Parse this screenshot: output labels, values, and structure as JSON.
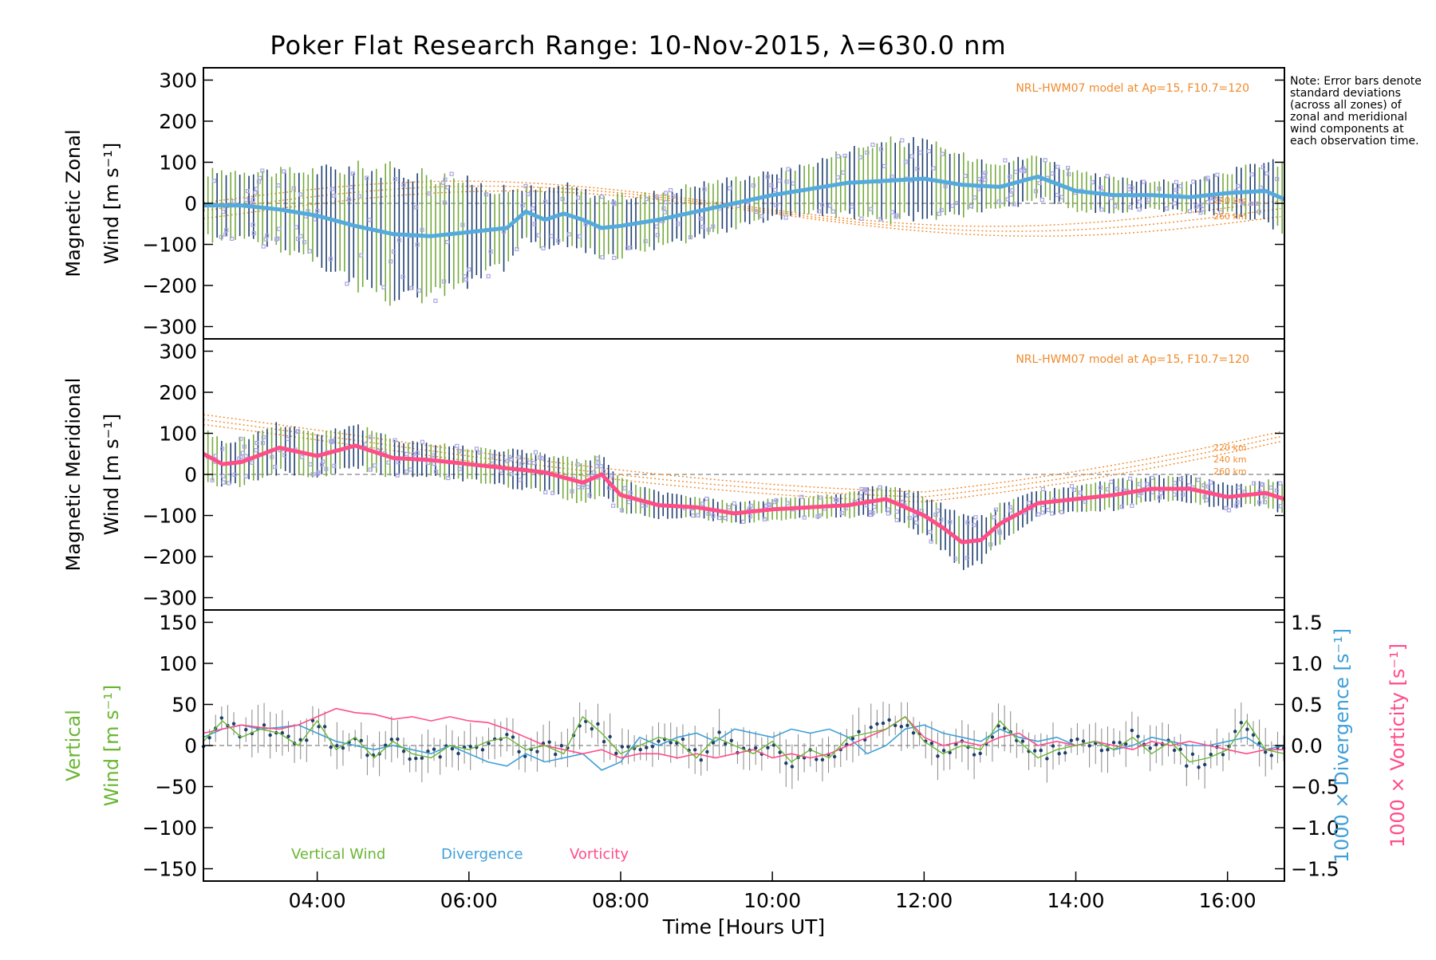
{
  "title": "Poker Flat Research Range: 10-Nov-2015, λ=630.0 nm",
  "note": "Note: Error bars denote standard deviations (across all zones) of zonal and meridional wind components at each observation time.",
  "colors": {
    "zonal": "#55aadd",
    "meridional": "#ff4d88",
    "vertical": "#6ab633",
    "divergence": "#3f9fd8",
    "vorticity": "#ff4d88",
    "model": "#f08a2c",
    "scatter": "#a9a6e4",
    "errorbar_dark": "#1e3e6e",
    "errorbar_green": "#74aa3c"
  },
  "chart_data": [
    {
      "type": "line",
      "ylabel": "Magnetic Zonal Wind [m s⁻¹]",
      "ylabel_line1": "Magnetic Zonal",
      "ylabel_line2": "Wind [m s⁻¹]",
      "model_label": "NRL-HWM07 model at Ap=15, F10.7=120",
      "altitude_labels": [
        "240 km",
        "260 km"
      ],
      "xlim": [
        2.5,
        16.75
      ],
      "ylim": [
        -330,
        330
      ],
      "yticks": [
        300,
        200,
        100,
        0,
        -100,
        -200,
        -300
      ],
      "x": [
        2.5,
        3.0,
        3.5,
        4.0,
        4.5,
        5.0,
        5.5,
        6.0,
        6.5,
        6.75,
        7.0,
        7.25,
        7.5,
        7.75,
        8.0,
        8.5,
        9.0,
        9.5,
        10.0,
        10.5,
        11.0,
        11.5,
        12.0,
        12.5,
        13.0,
        13.5,
        14.0,
        14.5,
        15.0,
        15.5,
        16.0,
        16.5,
        16.75
      ],
      "mean_wind": [
        -5,
        -5,
        -15,
        -30,
        -55,
        -75,
        -80,
        -70,
        -60,
        -20,
        -40,
        -25,
        -40,
        -60,
        -55,
        -40,
        -20,
        0,
        20,
        35,
        50,
        55,
        60,
        45,
        40,
        65,
        30,
        20,
        20,
        15,
        25,
        30,
        10
      ],
      "std_dev": [
        80,
        85,
        90,
        110,
        140,
        155,
        150,
        120,
        90,
        60,
        70,
        70,
        70,
        75,
        70,
        65,
        65,
        60,
        55,
        60,
        80,
        95,
        90,
        70,
        60,
        50,
        45,
        40,
        35,
        35,
        50,
        70,
        85
      ]
    },
    {
      "type": "line",
      "ylabel": "Magnetic Meridional Wind [m s⁻¹]",
      "ylabel_line1": "Magnetic Meridional",
      "ylabel_line2": "Wind [m s⁻¹]",
      "model_label": "NRL-HWM07 model at Ap=15, F10.7=120",
      "altitude_labels": [
        "220 km",
        "240 km",
        "260 km"
      ],
      "xlim": [
        2.5,
        16.75
      ],
      "ylim": [
        -330,
        330
      ],
      "yticks": [
        300,
        200,
        100,
        0,
        -100,
        -200,
        -300
      ],
      "x": [
        2.5,
        2.75,
        3.0,
        3.5,
        4.0,
        4.5,
        5.0,
        5.5,
        6.0,
        6.5,
        7.0,
        7.5,
        7.75,
        8.0,
        8.5,
        9.0,
        9.5,
        10.0,
        10.5,
        11.0,
        11.5,
        12.0,
        12.25,
        12.5,
        12.75,
        13.0,
        13.5,
        14.0,
        14.5,
        15.0,
        15.5,
        16.0,
        16.25,
        16.5,
        16.75
      ],
      "mean_wind": [
        50,
        25,
        30,
        65,
        45,
        70,
        40,
        35,
        25,
        15,
        5,
        -20,
        0,
        -50,
        -75,
        -80,
        -95,
        -85,
        -80,
        -75,
        -60,
        -100,
        -130,
        -165,
        -160,
        -120,
        -70,
        -60,
        -50,
        -35,
        -35,
        -55,
        -50,
        -45,
        -60
      ],
      "std_dev": [
        60,
        55,
        55,
        60,
        55,
        50,
        45,
        40,
        40,
        45,
        45,
        50,
        45,
        40,
        30,
        25,
        25,
        25,
        25,
        30,
        35,
        50,
        55,
        60,
        55,
        45,
        30,
        30,
        35,
        30,
        30,
        30,
        25,
        30,
        35
      ]
    },
    {
      "type": "line",
      "ylabel": "Vertical Wind [m s⁻¹]",
      "ylabel_line1": "Vertical",
      "ylabel_line2": "Wind [m s⁻¹]",
      "y2label": "1000 × Divergence [s⁻¹]",
      "y3label": "1000 × Vorticity [s⁻¹]",
      "xlim": [
        2.5,
        16.75
      ],
      "ylim": [
        -165,
        165
      ],
      "yticks": [
        150,
        100,
        50,
        0,
        -50,
        -100,
        -150
      ],
      "y2lim": [
        -1.65,
        1.65
      ],
      "y2ticks": [
        1.5,
        1.0,
        0.5,
        0.0,
        -0.5,
        -1.0,
        -1.5
      ],
      "y2ticklabels": [
        "1.5",
        "1.0",
        "0.5",
        "0.0",
        "−0.5",
        "−1.0",
        "−1.5"
      ],
      "xticks": [
        4,
        6,
        8,
        10,
        12,
        14,
        16
      ],
      "xticklabels": [
        "04:00",
        "06:00",
        "08:00",
        "10:00",
        "12:00",
        "14:00",
        "16:00"
      ],
      "xlabel": "Time [Hours UT]",
      "legend": [
        "Vertical Wind",
        "Divergence",
        "Vorticity"
      ],
      "series": [
        {
          "name": "Vertical Wind",
          "x": [
            2.5,
            2.75,
            3.0,
            3.25,
            3.5,
            3.75,
            4.0,
            4.25,
            4.5,
            4.75,
            5.0,
            5.25,
            5.5,
            5.75,
            6.0,
            6.25,
            6.5,
            6.75,
            7.0,
            7.25,
            7.5,
            7.75,
            8.0,
            8.25,
            8.5,
            8.75,
            9.0,
            9.25,
            9.5,
            9.75,
            10.0,
            10.25,
            10.5,
            10.75,
            11.0,
            11.25,
            11.5,
            11.75,
            12.0,
            12.25,
            12.5,
            12.75,
            13.0,
            13.25,
            13.5,
            13.75,
            14.0,
            14.25,
            14.5,
            14.75,
            15.0,
            15.25,
            15.5,
            15.75,
            16.0,
            16.25,
            16.5,
            16.75
          ],
          "y": [
            5,
            30,
            10,
            20,
            15,
            0,
            30,
            -5,
            10,
            -15,
            5,
            -10,
            -15,
            0,
            -5,
            5,
            10,
            -5,
            0,
            -10,
            35,
            15,
            -10,
            0,
            10,
            5,
            -15,
            10,
            0,
            -10,
            5,
            -20,
            -5,
            -15,
            10,
            15,
            20,
            35,
            5,
            -10,
            0,
            -5,
            30,
            5,
            -15,
            -5,
            0,
            5,
            -5,
            10,
            -10,
            5,
            -20,
            -15,
            -5,
            30,
            -5,
            -10
          ]
        },
        {
          "name": "Divergence",
          "x": [
            2.5,
            2.75,
            3.0,
            3.25,
            3.5,
            3.75,
            4.0,
            4.25,
            4.5,
            4.75,
            5.0,
            5.25,
            5.5,
            5.75,
            6.0,
            6.25,
            6.5,
            6.75,
            7.0,
            7.25,
            7.5,
            7.75,
            8.0,
            8.25,
            8.5,
            8.75,
            9.0,
            9.25,
            9.5,
            9.75,
            10.0,
            10.25,
            10.5,
            10.75,
            11.0,
            11.25,
            11.5,
            11.75,
            12.0,
            12.25,
            12.5,
            12.75,
            13.0,
            13.25,
            13.5,
            13.75,
            14.0,
            14.25,
            14.5,
            14.75,
            15.0,
            15.25,
            15.5,
            15.75,
            16.0,
            16.25,
            16.5,
            16.75
          ],
          "y": [
            0.1,
            0.2,
            0.25,
            0.2,
            0.22,
            0.25,
            0.15,
            0.05,
            0.0,
            -0.05,
            0.0,
            -0.05,
            -0.1,
            0.0,
            -0.1,
            -0.2,
            -0.25,
            -0.1,
            -0.2,
            -0.15,
            -0.1,
            -0.3,
            -0.2,
            0.1,
            0.0,
            0.1,
            0.15,
            0.05,
            0.2,
            0.15,
            0.1,
            0.2,
            0.15,
            0.2,
            0.1,
            -0.1,
            0.0,
            0.2,
            0.25,
            0.15,
            0.1,
            0.05,
            0.2,
            0.1,
            0.05,
            0.1,
            0.0,
            0.05,
            -0.05,
            0.0,
            0.1,
            0.05,
            0.0,
            0.0,
            0.05,
            0.1,
            -0.05,
            0.0
          ]
        },
        {
          "name": "Vorticity",
          "x": [
            2.5,
            2.75,
            3.0,
            3.25,
            3.5,
            3.75,
            4.0,
            4.25,
            4.5,
            4.75,
            5.0,
            5.25,
            5.5,
            5.75,
            6.0,
            6.25,
            6.5,
            6.75,
            7.0,
            7.25,
            7.5,
            7.75,
            8.0,
            8.25,
            8.5,
            8.75,
            9.0,
            9.25,
            9.5,
            9.75,
            10.0,
            10.25,
            10.5,
            10.75,
            11.0,
            11.25,
            11.5,
            11.75,
            12.0,
            12.25,
            12.5,
            12.75,
            13.0,
            13.25,
            13.5,
            13.75,
            14.0,
            14.25,
            14.5,
            14.75,
            15.0,
            15.25,
            15.5,
            15.75,
            16.0,
            16.25,
            16.5,
            16.75
          ],
          "y": [
            0.15,
            0.2,
            0.25,
            0.22,
            0.2,
            0.25,
            0.35,
            0.45,
            0.4,
            0.38,
            0.32,
            0.35,
            0.3,
            0.35,
            0.3,
            0.28,
            0.2,
            0.1,
            0.0,
            -0.05,
            -0.1,
            -0.05,
            -0.15,
            -0.1,
            -0.1,
            -0.15,
            -0.1,
            -0.15,
            -0.1,
            -0.05,
            -0.15,
            -0.1,
            -0.15,
            -0.1,
            0.0,
            0.1,
            0.2,
            0.35,
            0.1,
            0.0,
            0.05,
            0.0,
            0.1,
            0.15,
            0.0,
            0.05,
            0.0,
            0.05,
            0.0,
            -0.05,
            0.05,
            0.0,
            0.05,
            0.0,
            -0.05,
            -0.1,
            -0.05,
            -0.05
          ]
        }
      ]
    }
  ]
}
